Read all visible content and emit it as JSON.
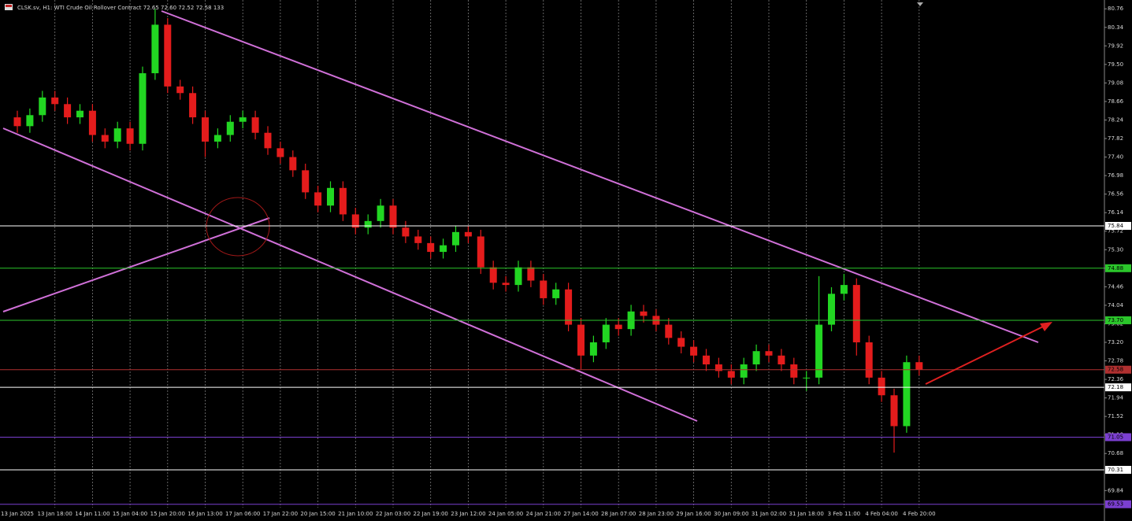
{
  "chart_data": {
    "type": "candlestick",
    "title": "CLSK.sv, H1: WTI Crude Oil Rollover Contract 72.65 72.60 72.52 72.58 133",
    "categories": [
      "13 Jan 2025",
      null,
      null,
      "13 Jan 18:00",
      null,
      null,
      "14 Jan 11:00",
      null,
      null,
      "15 Jan 04:00",
      null,
      null,
      "15 Jan 20:00",
      null,
      null,
      "16 Jan 13:00",
      null,
      null,
      "17 Jan 06:00",
      null,
      null,
      "17 Jan 22:00",
      null,
      null,
      "20 Jan 15:00",
      null,
      null,
      "21 Jan 10:00",
      null,
      null,
      "22 Jan 03:00",
      null,
      null,
      "22 Jan 19:00",
      null,
      null,
      "23 Jan 12:00",
      null,
      null,
      "24 Jan 05:00",
      null,
      null,
      "24 Jan 21:00",
      null,
      null,
      "27 Jan 14:00",
      null,
      null,
      "28 Jan 07:00",
      null,
      null,
      "28 Jan 23:00",
      null,
      null,
      "29 Jan 16:00",
      null,
      null,
      "30 Jan 09:00",
      null,
      null,
      "31 Jan 02:00",
      null,
      null,
      "31 Jan 18:00",
      null,
      null,
      "3 Feb 11:00",
      null,
      null,
      "4 Feb 04:00",
      null,
      null,
      "4 Feb 20:00"
    ],
    "open": [
      78.3,
      78.1,
      78.35,
      78.75,
      78.6,
      78.3,
      78.45,
      77.9,
      77.75,
      78.05,
      77.7,
      79.3,
      80.4,
      79.0,
      78.85,
      78.3,
      77.75,
      77.9,
      78.2,
      78.3,
      77.95,
      77.6,
      77.4,
      77.1,
      76.6,
      76.3,
      76.7,
      76.1,
      75.8,
      75.95,
      76.3,
      75.8,
      75.6,
      75.45,
      75.25,
      75.4,
      75.7,
      75.6,
      74.9,
      74.55,
      74.5,
      74.9,
      74.6,
      74.2,
      74.4,
      73.6,
      72.9,
      73.2,
      73.6,
      73.5,
      73.9,
      73.8,
      73.6,
      73.3,
      73.1,
      72.9,
      72.7,
      72.55,
      72.4,
      72.7,
      73.0,
      72.9,
      72.7,
      72.4,
      72.4,
      73.6,
      74.3,
      74.5,
      73.2,
      72.4,
      72.0,
      71.3,
      72.75
    ],
    "high": [
      78.45,
      78.5,
      78.9,
      78.9,
      78.75,
      78.6,
      78.6,
      78.05,
      78.2,
      78.2,
      79.45,
      80.76,
      80.55,
      79.15,
      79.0,
      78.45,
      78.05,
      78.35,
      78.45,
      78.45,
      78.1,
      77.75,
      77.55,
      77.25,
      76.75,
      76.85,
      76.85,
      76.25,
      76.1,
      76.45,
      76.45,
      75.95,
      75.75,
      75.6,
      75.55,
      75.85,
      75.85,
      75.75,
      75.05,
      74.7,
      75.05,
      75.05,
      74.75,
      74.55,
      74.55,
      73.75,
      73.35,
      73.75,
      73.75,
      74.05,
      74.05,
      73.95,
      73.75,
      73.45,
      73.25,
      73.05,
      72.85,
      72.7,
      72.85,
      73.15,
      73.15,
      73.05,
      72.85,
      72.55,
      74.7,
      74.45,
      74.75,
      74.65,
      73.35,
      72.55,
      72.15,
      72.9,
      72.9
    ],
    "low": [
      77.95,
      77.95,
      78.2,
      78.45,
      78.15,
      78.15,
      77.75,
      77.6,
      77.6,
      77.55,
      77.55,
      79.15,
      78.85,
      78.7,
      78.15,
      77.4,
      77.6,
      77.75,
      78.05,
      77.8,
      77.45,
      77.25,
      76.95,
      76.45,
      76.15,
      76.15,
      75.95,
      75.65,
      75.65,
      75.8,
      75.65,
      75.45,
      75.3,
      75.1,
      75.1,
      75.25,
      75.45,
      74.75,
      74.4,
      74.35,
      74.35,
      74.45,
      74.05,
      74.05,
      73.45,
      72.6,
      72.75,
      73.05,
      73.35,
      73.35,
      73.65,
      73.45,
      73.15,
      72.95,
      72.75,
      72.55,
      72.4,
      72.25,
      72.25,
      72.55,
      72.75,
      72.55,
      72.25,
      72.1,
      72.25,
      73.45,
      74.15,
      72.9,
      72.25,
      71.85,
      70.7,
      71.15,
      72.45
    ],
    "close": [
      78.1,
      78.35,
      78.75,
      78.6,
      78.3,
      78.45,
      77.9,
      77.75,
      78.05,
      77.7,
      79.3,
      80.4,
      79.0,
      78.85,
      78.3,
      77.75,
      77.9,
      78.2,
      78.3,
      77.95,
      77.6,
      77.4,
      77.1,
      76.6,
      76.3,
      76.7,
      76.1,
      75.8,
      75.95,
      76.3,
      75.8,
      75.6,
      75.45,
      75.25,
      75.4,
      75.7,
      75.6,
      74.9,
      74.55,
      74.5,
      74.9,
      74.6,
      74.2,
      74.4,
      73.6,
      72.9,
      73.2,
      73.6,
      73.5,
      73.9,
      73.8,
      73.6,
      73.3,
      73.1,
      72.9,
      72.7,
      72.55,
      72.4,
      72.7,
      73.0,
      72.9,
      72.7,
      72.4,
      72.4,
      73.6,
      74.3,
      74.5,
      73.2,
      72.4,
      72.0,
      71.3,
      72.75,
      72.58
    ],
    "up_color": "#22d622",
    "down_color": "#e41c1c",
    "ylim": [
      69.15,
      80.96
    ],
    "yticks": [
      80.76,
      80.34,
      79.92,
      {
        "value": 79.5,
        "label": "79.50"
      },
      79.08,
      78.66,
      78.24,
      77.82,
      {
        "value": 77.4,
        "label": "77.40"
      },
      76.98,
      76.56,
      76.14,
      75.72,
      {
        "value": 75.3,
        "label": "75.30"
      },
      74.88,
      74.46,
      74.04,
      73.62,
      {
        "value": 73.2,
        "label": "73.20"
      },
      72.78,
      72.36,
      71.94,
      71.52,
      {
        "value": 71.1,
        "label": "71.10"
      },
      70.68,
      69.84
    ],
    "levels": [
      {
        "value": 75.84,
        "color": "#ffffff"
      },
      {
        "value": 74.88,
        "color": "#2bc62b"
      },
      {
        "value": 73.7,
        "label": "73.70",
        "color": "#2bc62b"
      },
      {
        "value": 72.58,
        "color": "#b03030"
      },
      {
        "value": 72.18,
        "color": "#ffffff"
      },
      {
        "value": 71.05,
        "color": "#7b3fd0"
      },
      {
        "value": 70.31,
        "color": "#ffffff"
      },
      {
        "value": 69.53,
        "color": "#7b3fd0"
      }
    ],
    "grid": true
  }
}
